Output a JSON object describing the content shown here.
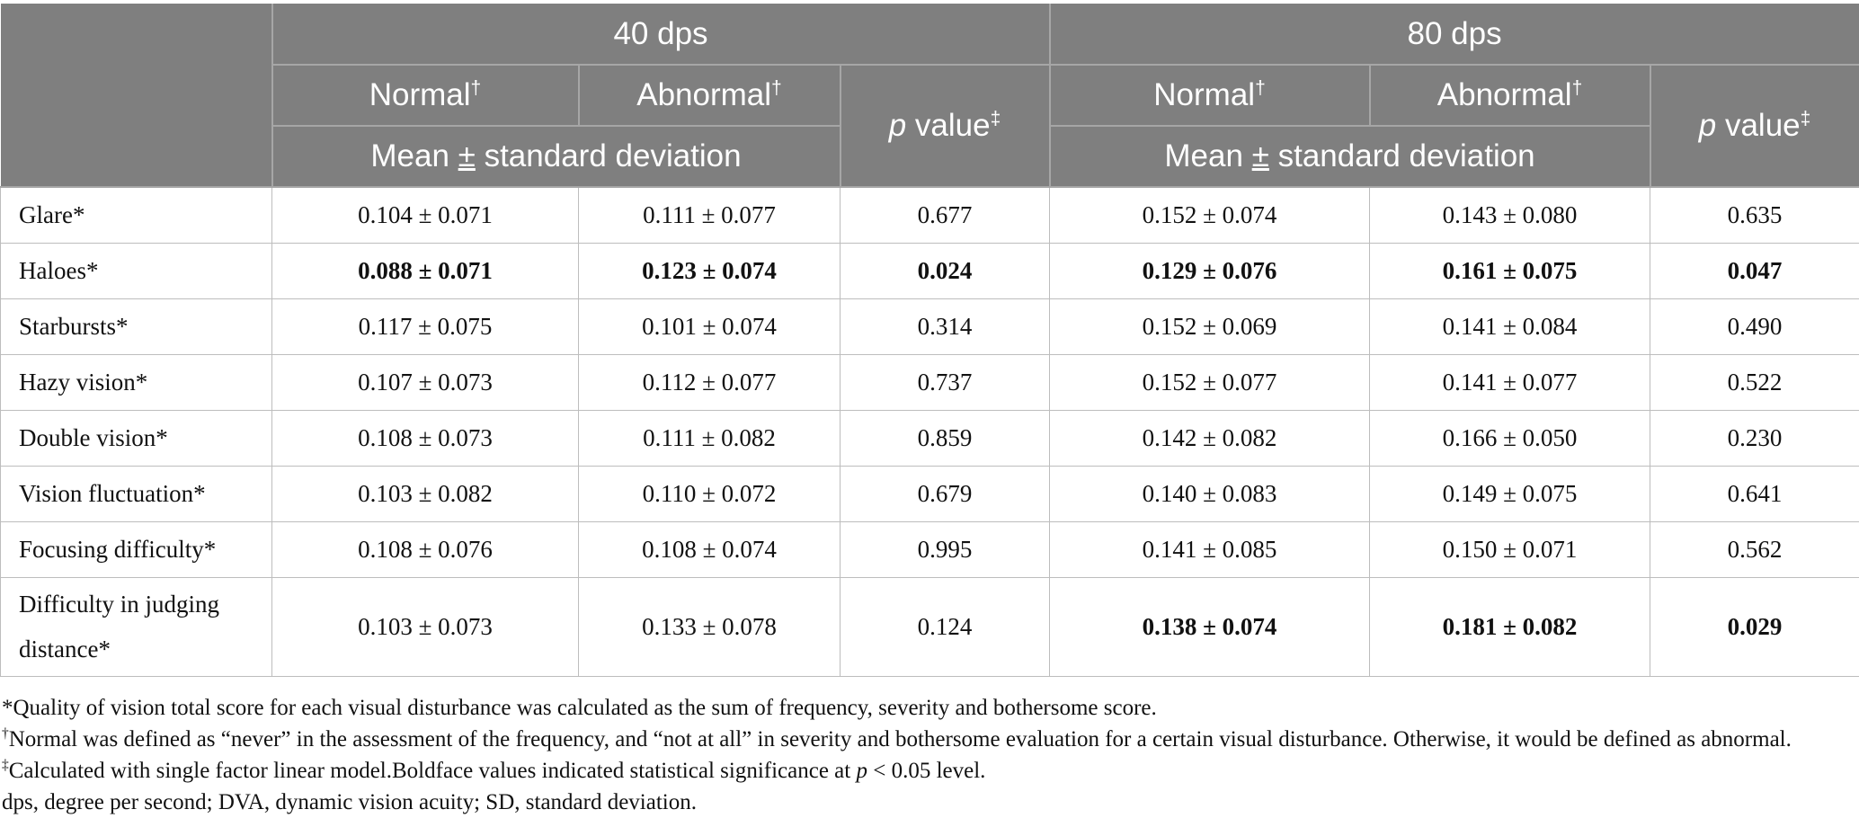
{
  "header": {
    "group_40": "40 dps",
    "group_80": "80 dps",
    "normal": "Normal",
    "abnormal": "Abnormal",
    "dagger": "†",
    "double_dagger": "‡",
    "p_italic": "p",
    "p_rest": " value",
    "mean_sd_pre": "Mean ",
    "mean_sd_pm": "±",
    "mean_sd_post": " standard deviation"
  },
  "rows": [
    {
      "label": "Glare*",
      "n40": "0.104 ± 0.071",
      "a40": "0.111 ± 0.077",
      "p40": "0.677",
      "n80": "0.152 ± 0.074",
      "a80": "0.143 ± 0.080",
      "p80": "0.635"
    },
    {
      "label": "Haloes*",
      "n40": "0.088 ± 0.071",
      "a40": "0.123 ± 0.074",
      "p40": "0.024",
      "n80": "0.129 ± 0.076",
      "a80": "0.161 ± 0.075",
      "p80": "0.047"
    },
    {
      "label": "Starbursts*",
      "n40": "0.117 ± 0.075",
      "a40": "0.101 ± 0.074",
      "p40": "0.314",
      "n80": "0.152 ± 0.069",
      "a80": "0.141 ± 0.084",
      "p80": "0.490"
    },
    {
      "label": "Hazy vision*",
      "n40": "0.107 ± 0.073",
      "a40": "0.112 ± 0.077",
      "p40": "0.737",
      "n80": "0.152 ± 0.077",
      "a80": "0.141 ± 0.077",
      "p80": "0.522"
    },
    {
      "label": "Double vision*",
      "n40": "0.108 ± 0.073",
      "a40": "0.111 ± 0.082",
      "p40": "0.859",
      "n80": "0.142 ± 0.082",
      "a80": "0.166 ± 0.050",
      "p80": "0.230"
    },
    {
      "label": "Vision fluctuation*",
      "n40": "0.103 ± 0.082",
      "a40": "0.110 ± 0.072",
      "p40": "0.679",
      "n80": "0.140 ± 0.083",
      "a80": "0.149 ± 0.075",
      "p80": "0.641"
    },
    {
      "label": "Focusing difficulty*",
      "n40": "0.108 ± 0.076",
      "a40": "0.108 ± 0.074",
      "p40": "0.995",
      "n80": "0.141 ± 0.085",
      "a80": "0.150 ± 0.071",
      "p80": "0.562"
    },
    {
      "label_line1": "Difficulty in judging",
      "label_line2": "distance*",
      "n40": "0.103 ± 0.073",
      "a40": "0.133 ± 0.078",
      "p40": "0.124",
      "n80": "0.138 ± 0.074",
      "a80": "0.181 ± 0.082",
      "p80": "0.029"
    }
  ],
  "footnotes": {
    "star": "*Quality of vision total score for each visual disturbance was calculated as the sum of frequency, severity and bothersome score.",
    "dagger_mark": "†",
    "dagger_text": "Normal was defined as “never” in the assessment of the frequency, and “not at all” in severity and bothersome evaluation for a certain visual disturbance. Otherwise, it would be defined as abnormal.",
    "ddagger_mark": "‡",
    "ddagger_text_pre": "Calculated with single factor linear model.Boldface values indicated statistical significance at ",
    "ddagger_p": "p",
    "ddagger_text_post": " < 0.05 level.",
    "abbrev": "dps, degree per second; DVA, dynamic vision acuity; SD, standard deviation."
  }
}
